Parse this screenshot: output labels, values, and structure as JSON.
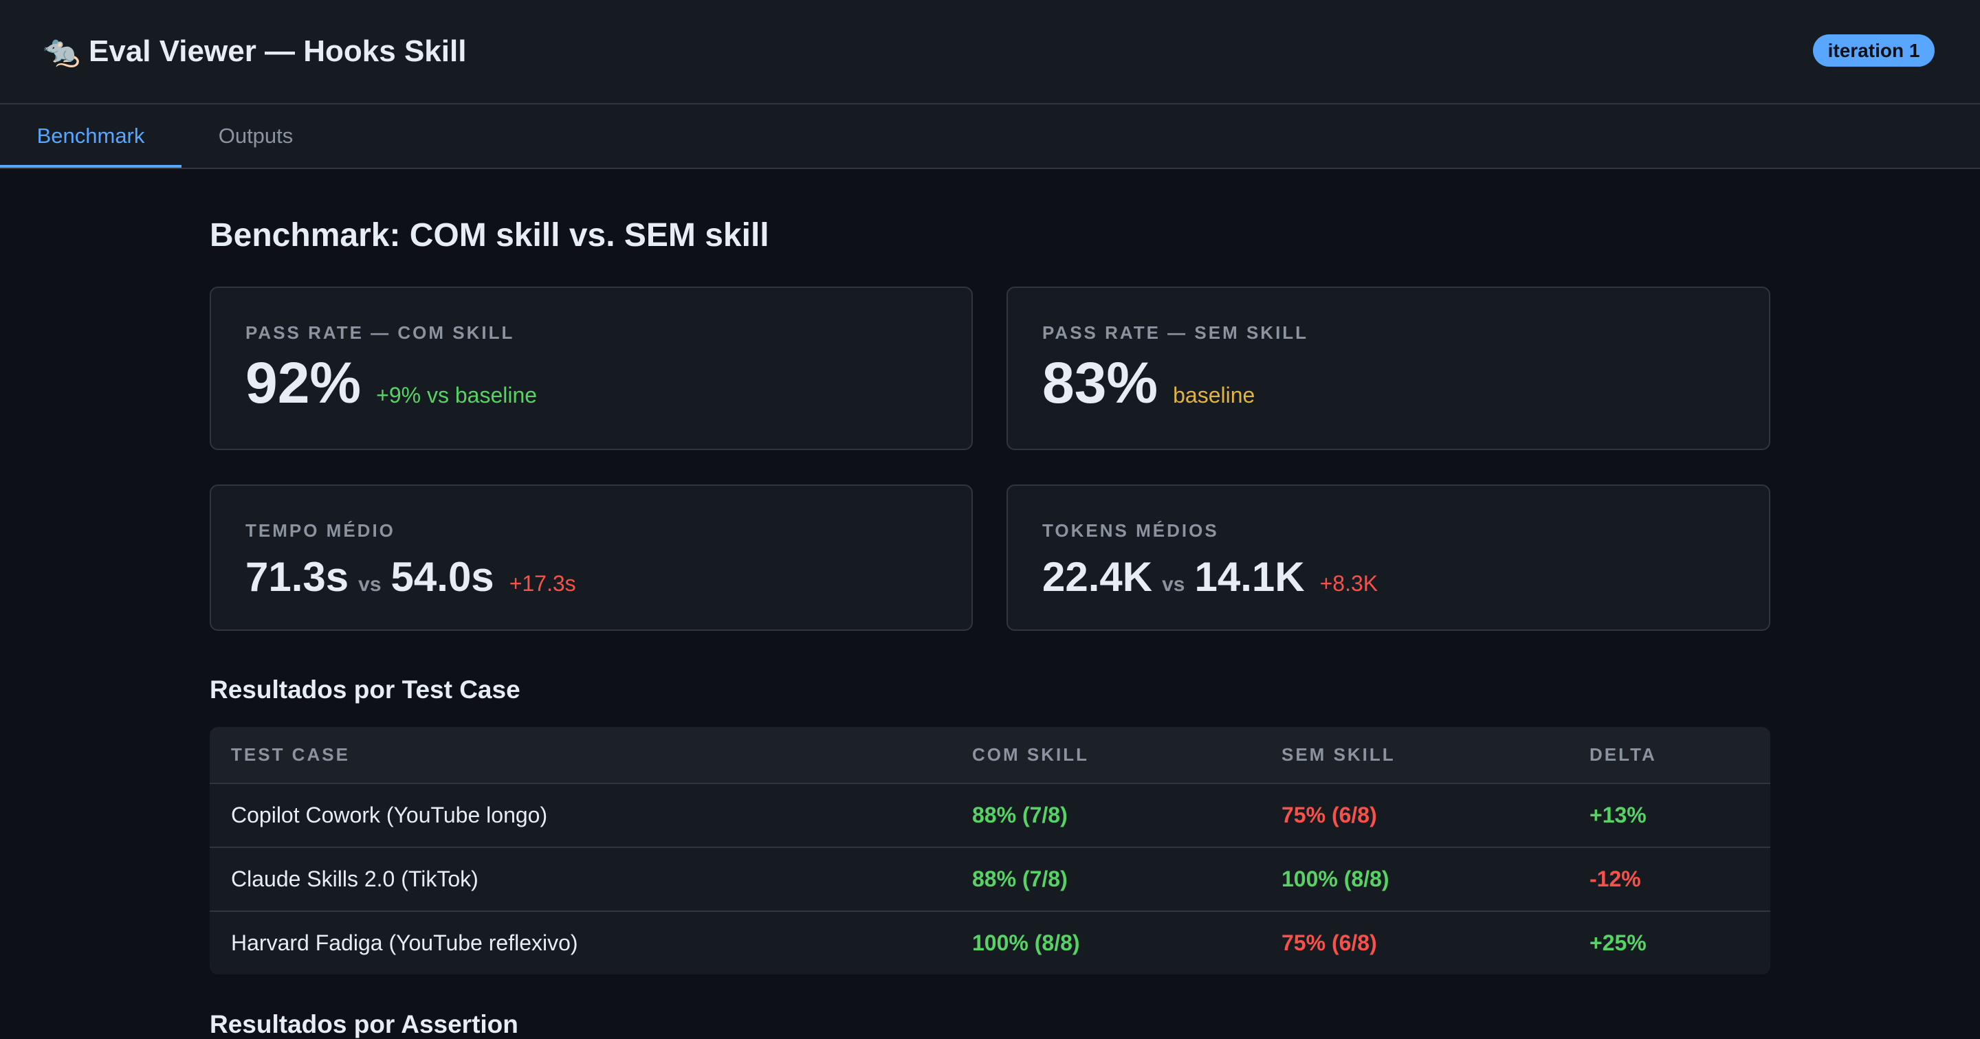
{
  "header": {
    "title": "🐀 Eval Viewer — Hooks Skill",
    "badge": "iteration 1"
  },
  "tabs": [
    "Benchmark",
    "Outputs"
  ],
  "heading": "Benchmark: COM skill vs. SEM skill",
  "cards": [
    {
      "label": "PASS RATE — COM SKILL",
      "value": "92%",
      "note": "+9% vs baseline"
    },
    {
      "label": "PASS RATE — SEM SKILL",
      "value": "83%",
      "note": "baseline"
    },
    {
      "label": "TEMPO MÉDIO",
      "value": "71.3s",
      "vs": "vs",
      "value2": "54.0s",
      "note": "+17.3s"
    },
    {
      "label": "TOKENS MÉDIOS",
      "value": "22.4K",
      "vs": "vs",
      "value2": "14.1K",
      "note": "+8.3K"
    }
  ],
  "section1": "Resultados por Test Case",
  "table": {
    "header": [
      "TEST CASE",
      "COM SKILL",
      "SEM SKILL",
      "DELTA"
    ],
    "rows": [
      [
        "Copilot Cowork (YouTube longo)",
        "88% (7/8)",
        "75% (6/8)",
        "+13%"
      ],
      [
        "Claude Skills 2.0 (TikTok)",
        "88% (7/8)",
        "100% (8/8)",
        "-12%"
      ],
      [
        "Harvard Fadiga (YouTube reflexivo)",
        "100% (8/8)",
        "75% (6/8)",
        "+25%"
      ]
    ]
  },
  "section2": "Resultados por Assertion"
}
